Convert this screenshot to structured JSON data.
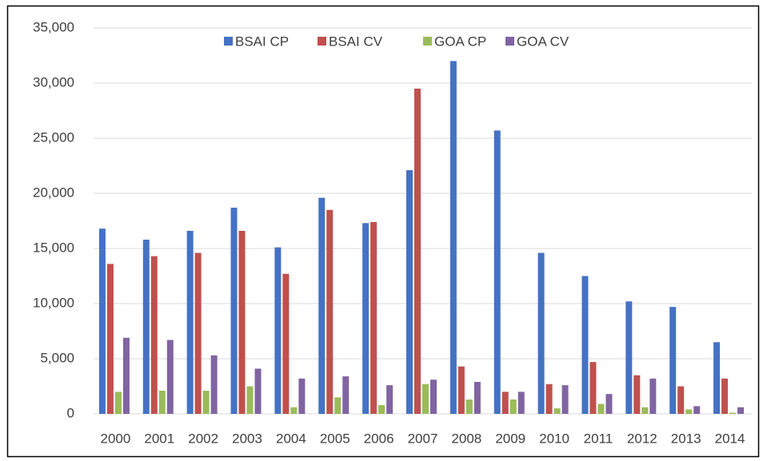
{
  "chart_data": {
    "type": "bar",
    "categories": [
      "2000",
      "2001",
      "2002",
      "2003",
      "2004",
      "2005",
      "2006",
      "2007",
      "2008",
      "2009",
      "2010",
      "2011",
      "2012",
      "2013",
      "2014"
    ],
    "series": [
      {
        "name": "BSAI CP",
        "color": "#4472c4",
        "values": [
          16800,
          15800,
          16600,
          18700,
          15100,
          19600,
          17300,
          22100,
          32000,
          25700,
          14600,
          12500,
          10200,
          9700,
          6500
        ]
      },
      {
        "name": "BSAI CV",
        "color": "#c0504d",
        "values": [
          13600,
          14300,
          14600,
          16600,
          12700,
          18500,
          17400,
          29500,
          4300,
          2000,
          2700,
          4700,
          3500,
          2500,
          3200
        ]
      },
      {
        "name": "GOA CP",
        "color": "#9bbb59",
        "values": [
          2000,
          2100,
          2100,
          2500,
          600,
          1500,
          800,
          2700,
          1300,
          1300,
          500,
          900,
          600,
          400,
          100
        ]
      },
      {
        "name": "GOA CV",
        "color": "#8064a2",
        "values": [
          6900,
          6700,
          5300,
          4100,
          3200,
          3400,
          2600,
          3100,
          2900,
          2000,
          2600,
          1800,
          3200,
          700,
          600
        ]
      }
    ],
    "ylim": [
      0,
      35000
    ],
    "yticks": [
      0,
      {
        "value": 5000,
        "label": "5,000"
      },
      {
        "value": 10000,
        "label": "10,000"
      },
      {
        "value": 15000,
        "label": "15,000"
      },
      {
        "value": 20000,
        "label": "20,000"
      },
      {
        "value": 25000,
        "label": "25,000"
      },
      {
        "value": 30000,
        "label": "30,000"
      },
      {
        "value": 35000,
        "label": "35,000"
      }
    ],
    "grid": true,
    "legend": "top"
  }
}
